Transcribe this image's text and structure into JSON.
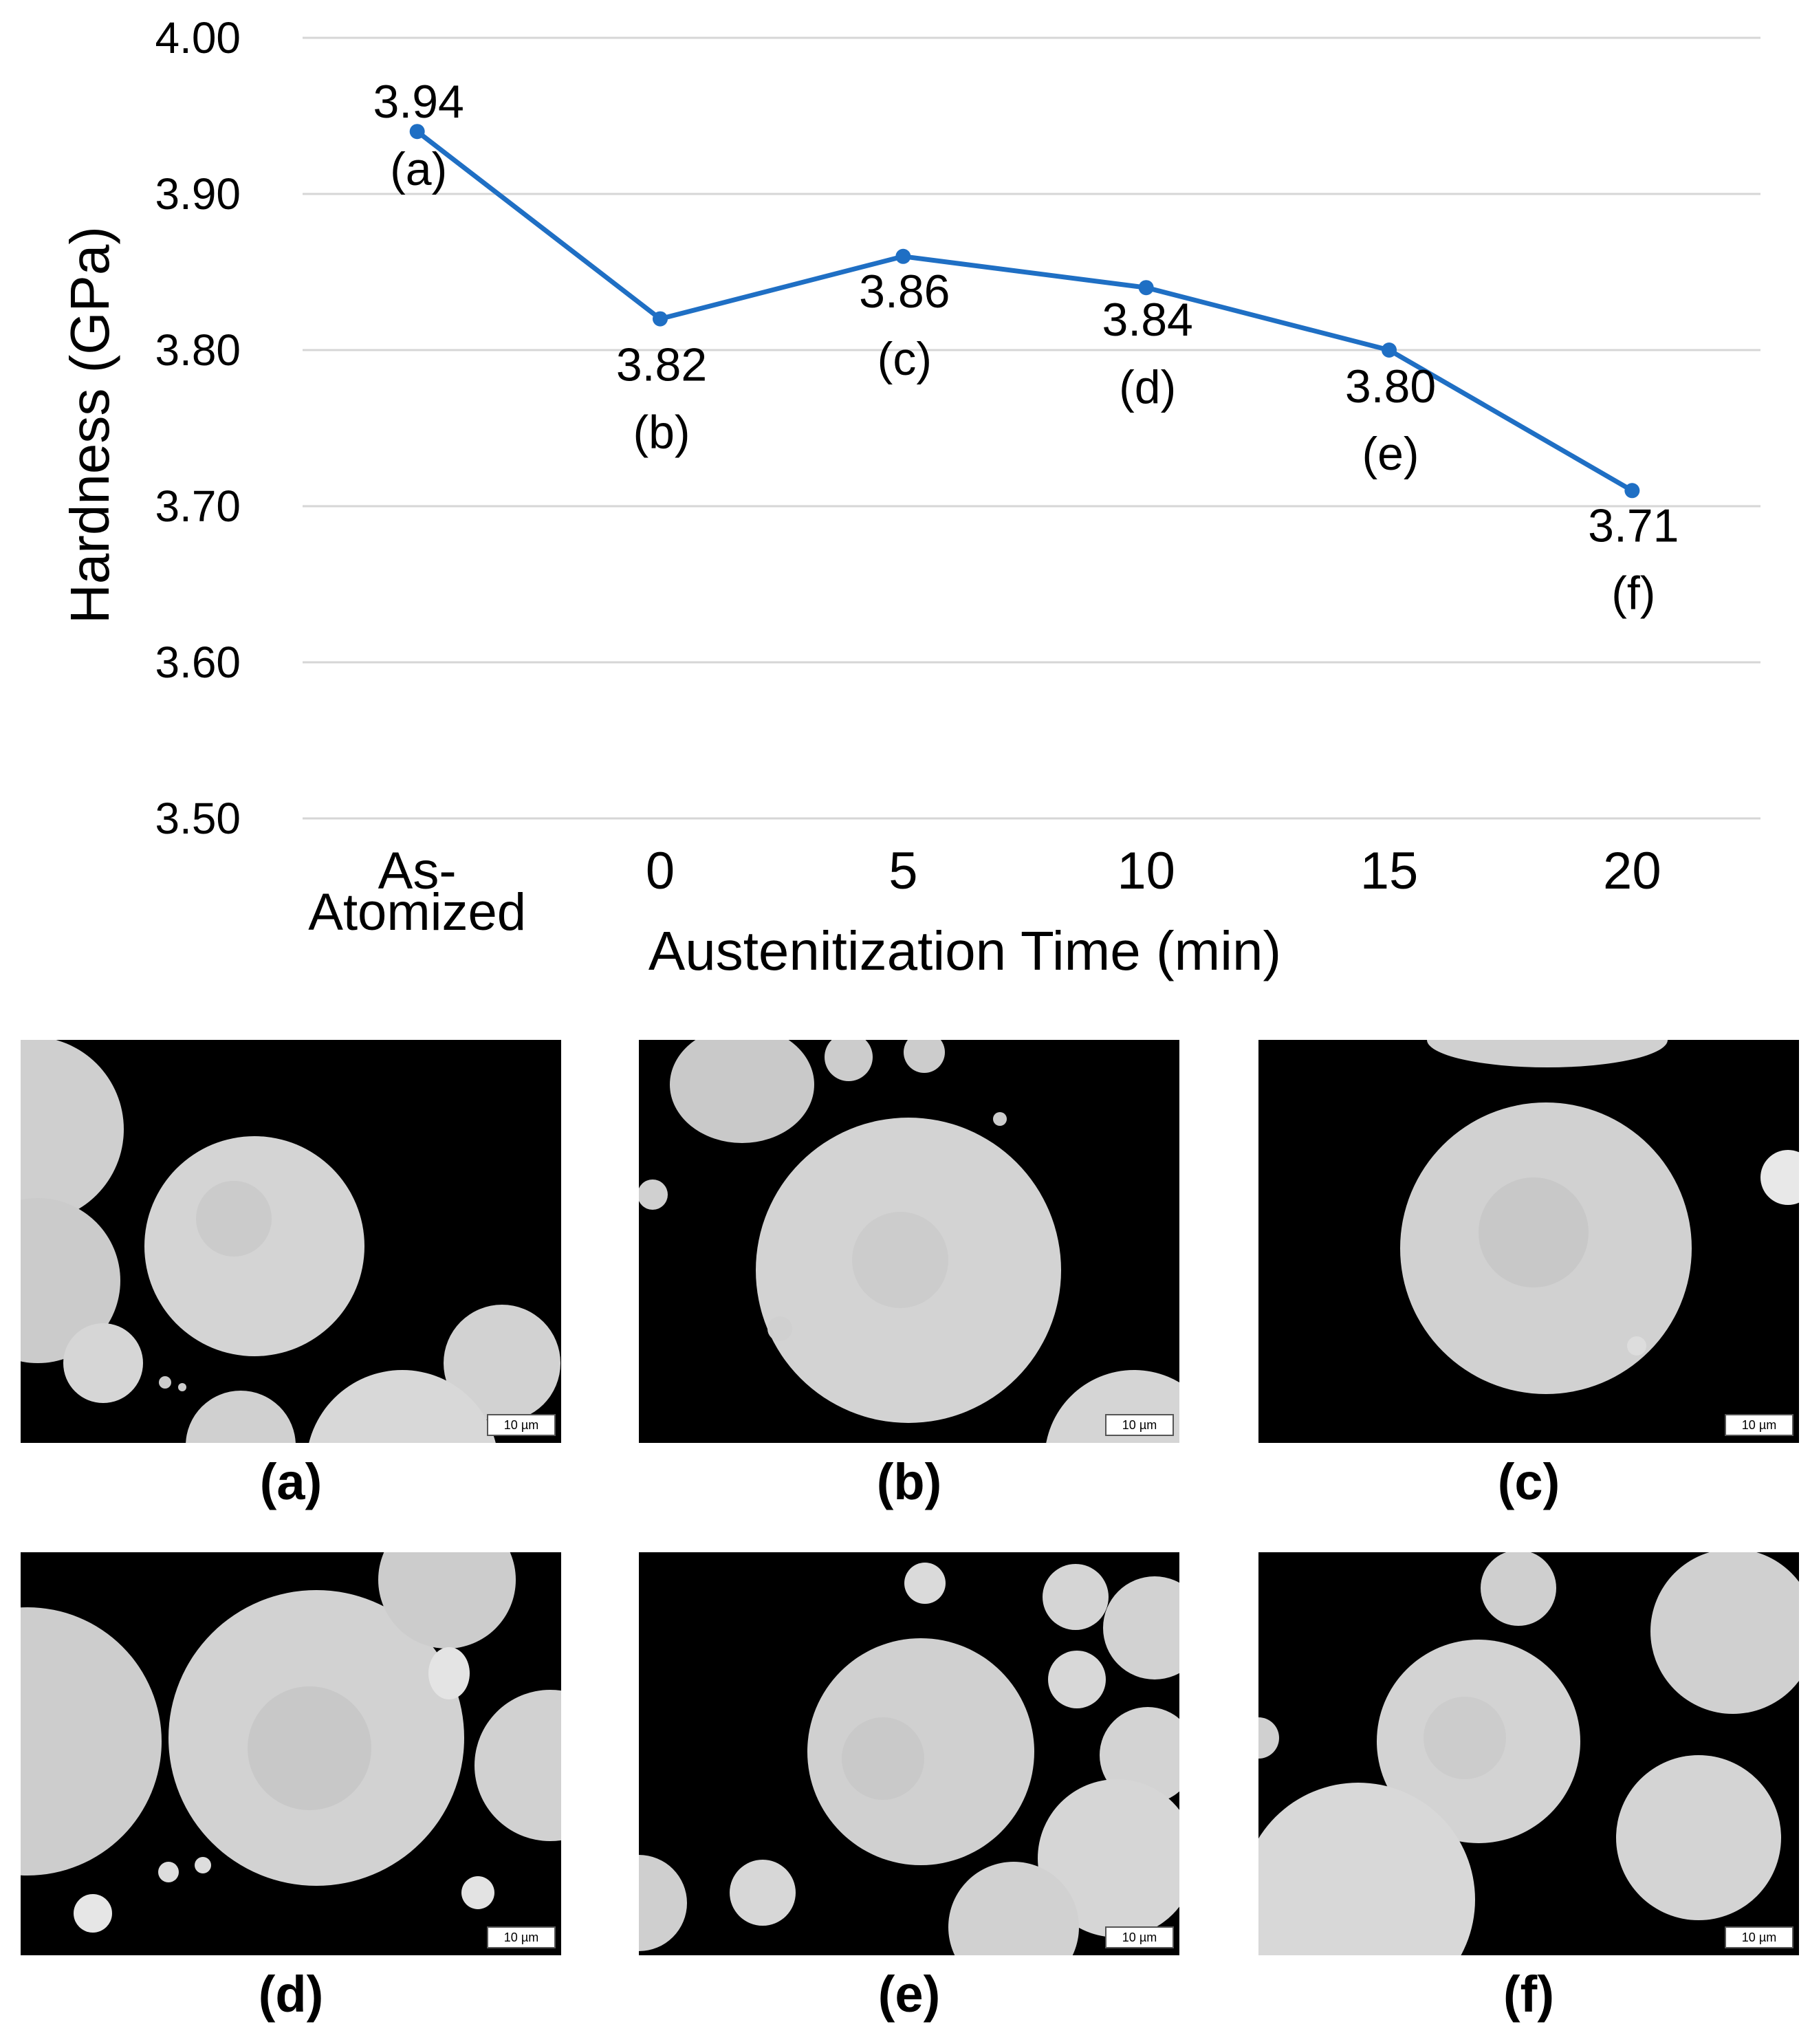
{
  "chart_data": {
    "type": "line",
    "categories": [
      "As-Atomized",
      "0",
      "5",
      "10",
      "15",
      "20"
    ],
    "category_lines": [
      [
        "As-",
        "Atomized"
      ],
      [
        "0"
      ],
      [
        "5"
      ],
      [
        "10"
      ],
      [
        "15"
      ],
      [
        "20"
      ]
    ],
    "series": [
      {
        "name": "Hardness",
        "values": [
          3.94,
          3.82,
          3.86,
          3.84,
          3.8,
          3.71
        ],
        "value_labels": [
          "3.94",
          "3.82",
          "3.86",
          "3.84",
          "3.80",
          "3.71"
        ],
        "point_labels": [
          "(a)",
          "(b)",
          "(c)",
          "(d)",
          "(e)",
          "(f)"
        ]
      }
    ],
    "xlabel": "Austenitization Time (min)",
    "ylabel": "Hardness (GPa)",
    "ylim": [
      3.5,
      4.0
    ],
    "yticks": [
      "3.50",
      "3.60",
      "3.70",
      "3.80",
      "3.90",
      "4.00"
    ],
    "grid": true,
    "line_color": "#1f6fc4"
  },
  "micrographs": {
    "scale_bar": "10 µm",
    "panels": [
      {
        "label": "(a)"
      },
      {
        "label": "(b)"
      },
      {
        "label": "(c)"
      },
      {
        "label": "(d)"
      },
      {
        "label": "(e)"
      },
      {
        "label": "(f)"
      }
    ]
  }
}
